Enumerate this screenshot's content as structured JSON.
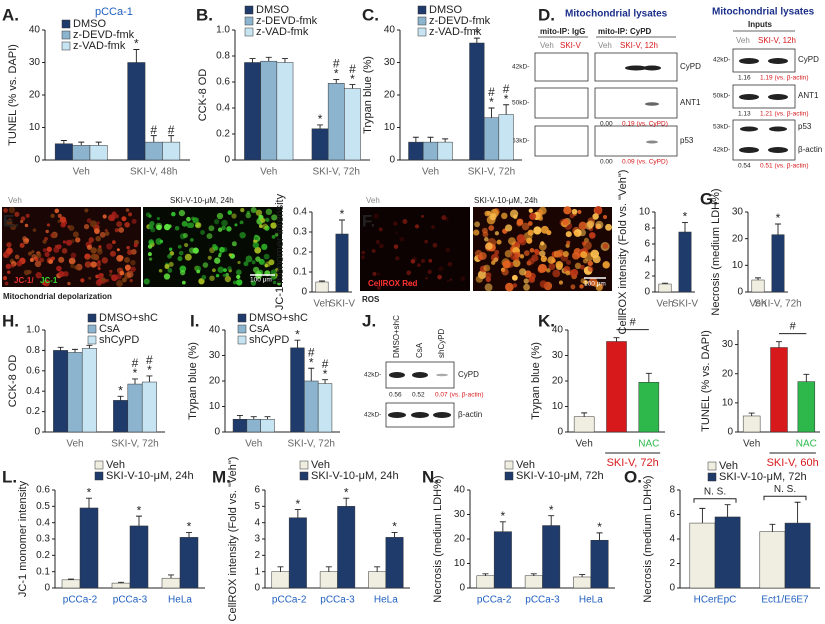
{
  "chart_data": [
    {
      "type": "bar",
      "panel": "A.",
      "subtitle": "pCCa-1",
      "ylabel": "TUNEL (% vs. DAPI)",
      "categories": [
        "Veh",
        "SKI-V, 48h"
      ],
      "series": [
        {
          "name": "DMSO",
          "color": "#1f3b6b",
          "values": [
            5,
            30
          ],
          "errors": [
            1,
            4
          ],
          "sig": [
            null,
            [
              "*"
            ]
          ]
        },
        {
          "name": "z-DEVD-fmk",
          "color": "#8db4cf",
          "values": [
            4.5,
            5.5
          ],
          "errors": [
            1,
            2
          ],
          "sig": [
            null,
            [
              "#"
            ]
          ]
        },
        {
          "name": "z-VAD-fmk",
          "color": "#c6e4f2",
          "values": [
            4.5,
            5.5
          ],
          "errors": [
            1,
            2
          ],
          "sig": [
            null,
            [
              "#"
            ]
          ]
        }
      ],
      "ylim": [
        0,
        40
      ],
      "yticks": [
        0,
        10,
        20,
        30,
        40
      ]
    },
    {
      "type": "bar",
      "panel": "B.",
      "ylabel": "CCK-8 OD",
      "categories": [
        "Veh",
        "SKI-V, 72h"
      ],
      "series": [
        {
          "name": "DMSO",
          "color": "#1f3b6b",
          "values": [
            0.75,
            0.24
          ],
          "errors": [
            0.03,
            0.03
          ],
          "sig": [
            null,
            [
              "*"
            ]
          ]
        },
        {
          "name": "z-DEVD-fmk",
          "color": "#8db4cf",
          "values": [
            0.76,
            0.59
          ],
          "errors": [
            0.03,
            0.03
          ],
          "sig": [
            null,
            [
              "#",
              "*"
            ]
          ]
        },
        {
          "name": "z-VAD-fmk",
          "color": "#c6e4f2",
          "values": [
            0.75,
            0.55
          ],
          "errors": [
            0.03,
            0.03
          ],
          "sig": [
            null,
            [
              "#",
              "*"
            ]
          ]
        }
      ],
      "ylim": [
        0,
        1
      ],
      "yticks": [
        0,
        0.2,
        0.4,
        0.6,
        0.8,
        {
          "value": 1,
          "label": "1.0"
        }
      ]
    },
    {
      "type": "bar",
      "panel": "C.",
      "ylabel": "Trypan blue (%)",
      "categories": [
        "Veh",
        "SKI-V, 72h"
      ],
      "series": [
        {
          "name": "DMSO",
          "color": "#1f3b6b",
          "values": [
            5.5,
            36
          ],
          "errors": [
            1.5,
            1.5
          ],
          "sig": [
            null,
            [
              "*"
            ]
          ]
        },
        {
          "name": "z-DEVD-fmk",
          "color": "#8db4cf",
          "values": [
            5.5,
            13
          ],
          "errors": [
            1.5,
            3
          ],
          "sig": [
            null,
            [
              "#",
              "*"
            ]
          ]
        },
        {
          "name": "z-VAD-fmk",
          "color": "#c6e4f2",
          "values": [
            5.5,
            14
          ],
          "errors": [
            1,
            3
          ],
          "sig": [
            null,
            [
              "#",
              "*"
            ]
          ]
        }
      ],
      "ylim": [
        0,
        40
      ],
      "yticks": [
        0,
        10,
        20,
        30,
        40
      ]
    },
    {
      "type": "bar",
      "panel": "E.",
      "ylabel": "JC-1 monomer intensity",
      "categories": [
        "Veh",
        "SKI-V"
      ],
      "values": [
        0.05,
        0.29
      ],
      "errors": [
        0.005,
        0.07
      ],
      "colors": [
        "#f0eee0",
        "#1f3b6b"
      ],
      "sig": [
        null,
        [
          "*"
        ]
      ],
      "ylim": [
        0,
        0.4
      ],
      "yticks": [
        0,
        0.1,
        0.2,
        0.3,
        0.4
      ]
    },
    {
      "type": "bar",
      "panel": "F.",
      "ylabel": "CellROX intensity (Fold vs. \"Veh\")",
      "categories": [
        "Veh",
        "SKI-V"
      ],
      "values": [
        1,
        7.5
      ],
      "errors": [
        0.1,
        1.2
      ],
      "colors": [
        "#f0eee0",
        "#1f3b6b"
      ],
      "sig": [
        null,
        [
          "*"
        ]
      ],
      "ylim": [
        0,
        10
      ],
      "yticks": [
        0,
        2,
        4,
        6,
        8,
        10
      ]
    },
    {
      "type": "bar",
      "panel": "G.",
      "ylabel": "Necrosis (medium LDH%)",
      "categories": [
        "Veh",
        "SKI-V, 72h"
      ],
      "values": [
        4.5,
        21.5
      ],
      "errors": [
        0.8,
        4
      ],
      "colors": [
        "#f0eee0",
        "#1f3b6b"
      ],
      "sig": [
        null,
        [
          "*"
        ]
      ],
      "ylim": [
        0,
        30
      ],
      "yticks": [
        0,
        10,
        20,
        30
      ]
    },
    {
      "type": "bar",
      "panel": "H.",
      "ylabel": "CCK-8 OD",
      "categories": [
        "Veh",
        "SKI-V, 72h"
      ],
      "series": [
        {
          "name": "DMSO+shC",
          "color": "#1f3b6b",
          "values": [
            0.8,
            0.31
          ],
          "errors": [
            0.03,
            0.04
          ],
          "sig": [
            null,
            [
              "*"
            ]
          ]
        },
        {
          "name": "CsA",
          "color": "#8db4cf",
          "values": [
            0.78,
            0.47
          ],
          "errors": [
            0.03,
            0.05
          ],
          "sig": [
            null,
            [
              "#",
              "*"
            ]
          ]
        },
        {
          "name": "shCyPD",
          "color": "#c6e4f2",
          "values": [
            0.82,
            0.49
          ],
          "errors": [
            0.03,
            0.06
          ],
          "sig": [
            null,
            [
              "#",
              "*"
            ]
          ]
        }
      ],
      "ylim": [
        0,
        1
      ],
      "yticks": [
        0,
        0.2,
        0.4,
        0.6,
        0.8,
        {
          "value": 1,
          "label": "1.0"
        }
      ]
    },
    {
      "type": "bar",
      "panel": "I.",
      "ylabel": "Trypan blue (%)",
      "categories": [
        "Veh",
        "SKI-V, 72h"
      ],
      "series": [
        {
          "name": "DMSO+shC",
          "color": "#1f3b6b",
          "values": [
            5,
            33
          ],
          "errors": [
            1.5,
            3
          ],
          "sig": [
            null,
            [
              "*"
            ]
          ]
        },
        {
          "name": "CsA",
          "color": "#8db4cf",
          "values": [
            5,
            20
          ],
          "errors": [
            1,
            5
          ],
          "sig": [
            null,
            [
              "#",
              "*"
            ]
          ]
        },
        {
          "name": "shCyPD",
          "color": "#c6e4f2",
          "values": [
            5,
            19
          ],
          "errors": [
            1,
            1.5
          ],
          "sig": [
            null,
            [
              "#",
              "*"
            ]
          ]
        }
      ],
      "ylim": [
        0,
        40
      ],
      "yticks": [
        0,
        10,
        20,
        30,
        40
      ]
    },
    {
      "type": "bar",
      "panel": "K.",
      "ylabel": "Trypan blue (%)",
      "categories": [
        "Veh",
        null,
        "NAC"
      ],
      "category_colors": [
        "#333333",
        null,
        "#2eb84c"
      ],
      "values": [
        6,
        35.5,
        19.5
      ],
      "errors": [
        1.5,
        1.5,
        3.5
      ],
      "colors": [
        "#f0eee0",
        "#d7191c",
        "#2eb84c"
      ],
      "group_label": "SKI-V, 72h",
      "group_color": "#d7191c",
      "bracket_label": "#",
      "ylim": [
        0,
        40
      ],
      "yticks": [
        0,
        10,
        20,
        30,
        40
      ]
    },
    {
      "type": "bar",
      "ylabel": "TUNEL (% vs. DAPI)",
      "categories": [
        "Veh",
        null,
        "NAC"
      ],
      "category_colors": [
        "#333333",
        null,
        "#2eb84c"
      ],
      "values": [
        5.5,
        29,
        17.3
      ],
      "errors": [
        1,
        2,
        2.5
      ],
      "colors": [
        "#f0eee0",
        "#d7191c",
        "#2eb84c"
      ],
      "group_label": "SKI-V, 60h",
      "group_color": "#d7191c",
      "bracket_label": "#",
      "ylim": [
        0,
        35
      ],
      "yticks": [
        0,
        10,
        20,
        30
      ]
    },
    {
      "type": "bar",
      "panel": "L.",
      "ylabel": "JC-1 monomer intensity",
      "categories": [
        "pCCa-2",
        "pCCa-3",
        "HeLa"
      ],
      "category_color": "#1f5fbf",
      "series": [
        {
          "name": "Veh",
          "color": "#f0eee0",
          "values": [
            0.05,
            0.03,
            0.06
          ],
          "errors": [
            0.005,
            0.005,
            0.02
          ]
        },
        {
          "name": "SKI-V-10-μM, 24h",
          "color": "#1f3b6b",
          "values": [
            0.49,
            0.38,
            0.31
          ],
          "errors": [
            0.06,
            0.06,
            0.03
          ],
          "sig": [
            [
              "*"
            ],
            [
              "*"
            ],
            [
              "*"
            ]
          ]
        }
      ],
      "ylim": [
        0,
        0.6
      ],
      "yticks": [
        0,
        0.1,
        0.2,
        0.3,
        0.4,
        0.5,
        0.6
      ]
    },
    {
      "type": "bar",
      "panel": "M.",
      "ylabel": "CellROX intensity (Fold vs. \"Veh\")",
      "categories": [
        "pCCa-2",
        "pCCa-3",
        "HeLa"
      ],
      "category_color": "#1f5fbf",
      "series": [
        {
          "name": "Veh",
          "color": "#f0eee0",
          "values": [
            1,
            1,
            1
          ],
          "errors": [
            0.3,
            0.3,
            0.3
          ]
        },
        {
          "name": "SKI-V-10-μM, 24h",
          "color": "#1f3b6b",
          "values": [
            4.3,
            5,
            3.1
          ],
          "errors": [
            0.5,
            0.5,
            0.3
          ],
          "sig": [
            [
              "*"
            ],
            [
              "*"
            ],
            [
              "*"
            ]
          ]
        }
      ],
      "ylim": [
        0,
        6
      ],
      "yticks": [
        0,
        1,
        2,
        3,
        4,
        5,
        6
      ]
    },
    {
      "type": "bar",
      "panel": "N.",
      "ylabel": "Necrosis (medium LDH%)",
      "categories": [
        "pCCa-2",
        "pCCa-3",
        "HeLa"
      ],
      "category_color": "#1f5fbf",
      "series": [
        {
          "name": "Veh",
          "color": "#f0eee0",
          "values": [
            5,
            5,
            4.5
          ],
          "errors": [
            0.8,
            0.8,
            1
          ]
        },
        {
          "name": "SKI-V-10-μM, 72h",
          "color": "#1f3b6b",
          "values": [
            23,
            25.5,
            19.5
          ],
          "errors": [
            4,
            4,
            3
          ],
          "sig": [
            [
              "*"
            ],
            [
              "*"
            ],
            [
              "*"
            ]
          ]
        }
      ],
      "ylim": [
        0,
        40
      ],
      "yticks": [
        0,
        10,
        20,
        30,
        40
      ]
    },
    {
      "type": "bar",
      "panel": "O.",
      "ylabel": "Necrosis (medium LDH%)",
      "categories": [
        "HCerEpC",
        "Ect1/E6E7"
      ],
      "category_color": "#1f5fbf",
      "series": [
        {
          "name": "Veh",
          "color": "#f0eee0",
          "values": [
            5.3,
            4.6
          ],
          "errors": [
            1.2,
            0.6
          ]
        },
        {
          "name": "SKI-V-10-μM, 72h",
          "color": "#1f3b6b",
          "values": [
            5.8,
            5.3
          ],
          "errors": [
            1,
            1.7
          ]
        }
      ],
      "category_notes": [
        "N. S.",
        "N. S."
      ],
      "ylim": [
        0,
        8
      ],
      "yticks": [
        0,
        2,
        4,
        6,
        8
      ]
    }
  ],
  "micrographs": {
    "E": {
      "left": "Veh",
      "right": "SKI-V-10-μM, 24h",
      "stain_red": "JC-1/",
      "stain_green": "JC-1",
      "scale": "100 μm",
      "caption": "Mitochondrial depolarization"
    },
    "F": {
      "left": "Veh",
      "right": "SKI-V-10-μM, 24h",
      "stain_red": "CellROX Red",
      "scale": "100 μm",
      "caption": "ROS"
    }
  },
  "blots": {
    "D": {
      "panel": "D.",
      "title": "Mitochondrial lysates",
      "ip_igg": "mito-IP: IgG",
      "ip_cypd": "mito-IP: CyPD",
      "lanes": [
        "Veh",
        "SKI-V",
        "Veh",
        "SKI-V, 12h"
      ],
      "rows": [
        {
          "kd": "42kD-",
          "protein": "CyPD"
        },
        {
          "kd": "50kD-",
          "protein": "ANT1",
          "quant": [
            "0.00",
            "0.19 (vs. CyPD)"
          ]
        },
        {
          "kd": "53kD-",
          "protein": "p53",
          "quant": [
            "0.00",
            "0.09 (vs. CyPD)"
          ]
        }
      ],
      "inputs": {
        "title": "Mitochondrial lysates",
        "subtitle": "Inputs",
        "lanes": [
          "Veh",
          "SKI-V, 12h"
        ],
        "rows": [
          {
            "kd": "42kD-",
            "protein": "CyPD",
            "quant": [
              "1.16",
              "1.19 (vs. β-actin)"
            ]
          },
          {
            "kd": "50kD-",
            "protein": "ANT1",
            "quant": [
              "1.13",
              "1.21 (vs. β-actin)"
            ]
          },
          {
            "kd": "53kD-",
            "protein": "p53",
            "quant": [
              "0.54",
              "0.51 (vs. β-actin)"
            ]
          },
          {
            "kd": "42kD-",
            "protein": "β-actin"
          }
        ]
      }
    },
    "J": {
      "panel": "J.",
      "lanes": [
        "DMSO+shC",
        "CsA",
        "shCyPD"
      ],
      "rows": [
        {
          "kd": "42kD-",
          "protein": "CyPD",
          "quant": [
            "0.56",
            "0.52",
            "0.07 (vs. β-actin)"
          ]
        },
        {
          "kd": "42kD-",
          "protein": "β-actin"
        }
      ]
    }
  }
}
